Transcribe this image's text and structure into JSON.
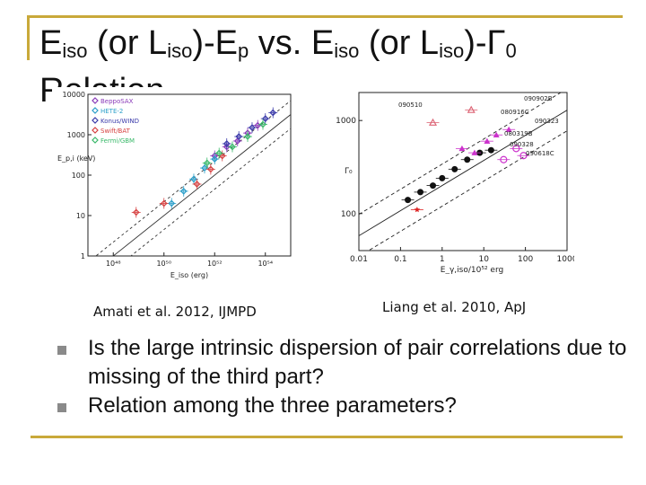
{
  "slide": {
    "title_lines": [
      [
        {
          "text": "E"
        },
        {
          "text": "iso",
          "sub": true
        },
        {
          "text": " (or L"
        },
        {
          "text": "iso",
          "sub": true
        },
        {
          "text": ")-E"
        },
        {
          "text": "p",
          "sub": true
        },
        {
          "text": " vs. E"
        },
        {
          "text": "iso",
          "sub": true
        },
        {
          "text": " (or L"
        },
        {
          "text": "iso",
          "sub": true
        },
        {
          "text": ")-Γ"
        },
        {
          "text": "0",
          "sub": true
        }
      ],
      [
        {
          "text": "Relation"
        }
      ]
    ],
    "captions": {
      "amati": "Amati et al. 2012, IJMPD",
      "liang": "Liang et al. 2010, ApJ"
    },
    "bullets": [
      "Is the large intrinsic dispersion of pair correlations due to missing of the third part?",
      "Relation among the three parameters?"
    ],
    "colors": {
      "frame": "#c9a93a",
      "bullet": "#8a8a8a"
    }
  },
  "chart_data": [
    {
      "type": "scatter",
      "xscale": "log",
      "yscale": "log",
      "xlim": [
        1e+47,
        1e+55
      ],
      "ylim": [
        1,
        10000
      ],
      "x_ticks": [
        1e+48,
        1e+50,
        1e+52,
        1e+54
      ],
      "x_tick_labels": [
        "10⁴⁸",
        "10⁵⁰",
        "10⁵²",
        "10⁵⁴"
      ],
      "y_ticks": [
        1,
        10,
        100,
        1000,
        10000
      ],
      "y_tick_labels": [
        "1",
        "10",
        "100",
        "1000",
        "10000"
      ],
      "xlabel": "E_iso (erg)",
      "ylabel": "E_p,i (keV)",
      "legend_position": "top-left",
      "series": [
        {
          "name": "BeppoSAX",
          "color": "#8a3ab9",
          "marker": "diamond-open",
          "x": [
            1e+52,
            3e+52,
            8e+52,
            2e+53,
            5e+53
          ],
          "y": [
            300,
            500,
            700,
            1100,
            1700
          ]
        },
        {
          "name": "HETE-2",
          "color": "#2a9ec9",
          "marker": "diamond-open",
          "x": [
            2e+50,
            6e+50,
            1.5e+51,
            4e+51,
            1e+52
          ],
          "y": [
            20,
            40,
            80,
            150,
            250
          ]
        },
        {
          "name": "Konus/WIND",
          "color": "#3a3aaa",
          "marker": "diamond-open",
          "x": [
            3e+52,
            9e+52,
            3e+53,
            1e+54,
            2e+54
          ],
          "y": [
            600,
            900,
            1500,
            2500,
            3500
          ]
        },
        {
          "name": "Swift/BAT",
          "color": "#d64040",
          "marker": "diamond-open",
          "x": [
            8e+48,
            1e+50,
            2e+51,
            7e+51,
            2e+52
          ],
          "y": [
            12,
            20,
            60,
            140,
            300
          ]
        },
        {
          "name": "Fermi/GBM",
          "color": "#3ab96a",
          "marker": "diamond-open",
          "x": [
            5e+51,
            1.5e+52,
            5e+52,
            2e+53,
            8e+53
          ],
          "y": [
            200,
            350,
            500,
            900,
            1800
          ]
        }
      ]
    },
    {
      "type": "scatter",
      "xscale": "log",
      "yscale": "log",
      "xlim": [
        0.01,
        1000
      ],
      "ylim": [
        40,
        2000
      ],
      "x_ticks": [
        0.01,
        0.1,
        1,
        10,
        100,
        1000
      ],
      "x_tick_labels": [
        "0.01",
        "0.1",
        "1",
        "10",
        "100",
        "1000"
      ],
      "y_ticks": [
        100,
        1000
      ],
      "y_tick_labels": [
        "100",
        "1000"
      ],
      "xlabel": "E_γ,iso/10⁵² erg",
      "ylabel": "Γ₀",
      "annotations": [
        "090510",
        "090902B",
        "080916C",
        "090323",
        "080319B",
        "090328",
        "090618C"
      ],
      "series": [
        {
          "marker": "filled-circle",
          "color": "#111111",
          "x": [
            0.15,
            0.3,
            0.6,
            1,
            2,
            4,
            8,
            15
          ],
          "y": [
            140,
            170,
            200,
            240,
            300,
            380,
            450,
            480
          ]
        },
        {
          "marker": "filled-triangle",
          "color": "#cc33cc",
          "x": [
            3,
            6,
            12,
            20,
            40
          ],
          "y": [
            500,
            450,
            600,
            700,
            800
          ]
        },
        {
          "marker": "open-triangle",
          "color": "#dd6677",
          "x": [
            0.6,
            5
          ],
          "y": [
            950,
            1300
          ]
        },
        {
          "marker": "open-circle",
          "color": "#cc33cc",
          "x": [
            30,
            60,
            90
          ],
          "y": [
            380,
            500,
            420
          ]
        },
        {
          "marker": "star",
          "color": "#dd2222",
          "x": [
            0.25
          ],
          "y": [
            110
          ]
        }
      ]
    }
  ]
}
